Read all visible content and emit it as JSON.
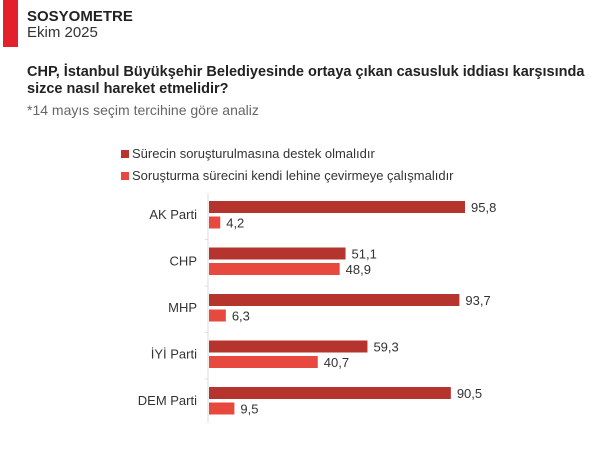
{
  "header": {
    "brand": "SOSYOMETRE",
    "date": "Ekim 2025"
  },
  "question": [
    "CHP, İstanbul Büyükşehir Belediyesinde ortaya çıkan casusluk iddiası karşısında",
    "sizce nasıl hareket etmelidir?"
  ],
  "note": "*14 mayıs seçim tercihine göre analiz",
  "colors": {
    "accent": "#e3212b",
    "series1": "#b5342d",
    "series2": "#e8493e"
  },
  "chart_data": {
    "type": "bar",
    "orientation": "horizontal",
    "title": "CHP, İstanbul Büyükşehir Belediyesinde ortaya çıkan casusluk iddiası karşısında sizce nasıl hareket etmelidir?",
    "categories": [
      "AK Parti",
      "CHP",
      "MHP",
      "İYİ Parti",
      "DEM Parti"
    ],
    "series": [
      {
        "name": "Sürecin soruşturulmasına destek olmalıdır",
        "values": [
          95.8,
          51.1,
          93.7,
          59.3,
          90.5
        ],
        "labels": [
          "95,8",
          "51,1",
          "93,7",
          "59,3",
          "90,5"
        ]
      },
      {
        "name": "Soruşturma sürecini kendi lehine çevirmeye çalışmalıdır",
        "values": [
          4.2,
          48.9,
          6.3,
          40.7,
          9.5
        ],
        "labels": [
          "4,2",
          "48,9",
          "6,3",
          "40,7",
          "9,5"
        ]
      }
    ],
    "xlim": [
      0,
      100
    ],
    "legend": "top",
    "grid": false
  }
}
